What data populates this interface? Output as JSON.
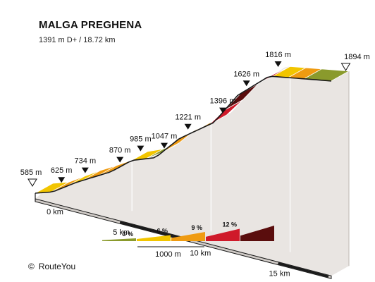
{
  "header": {
    "title": "MALGA PREGHENA",
    "subtitle": "1391 m D+ / 18.72 km"
  },
  "footer": {
    "copyright_symbol": "©",
    "copyright_text": "RouteYou"
  },
  "colors": {
    "background": "#ffffff",
    "wall": "#e9e5e2",
    "outline": "#1a1a1a",
    "grad_3": "#8a9a2c",
    "grad_6": "#f2c500",
    "grad_6b": "#f5d21a",
    "grad_9": "#ef9b12",
    "grad_12": "#cf1a2a",
    "grad_15": "#5a0d0d"
  },
  "chart_data": {
    "type": "area",
    "title": "MALGA PREGHENA",
    "subtitle": "1391 m D+ / 18.72 km",
    "total_distance_km": 18.72,
    "total_ascent_m": 1391,
    "xlim": [
      0,
      18.72
    ],
    "ylim": [
      585,
      1894
    ],
    "x_ticks": [
      {
        "km": 0,
        "label": "0 km"
      },
      {
        "km": 5,
        "label": "5 km"
      },
      {
        "km": 10,
        "label": "10 km"
      },
      {
        "km": 15,
        "label": "15 km"
      }
    ],
    "altitude_markers": [
      {
        "km": 0,
        "alt": 585,
        "label": "585 m",
        "kind": "start"
      },
      {
        "km": 1.1,
        "alt": 625,
        "label": "625 m",
        "kind": "point"
      },
      {
        "km": 2.6,
        "alt": 734,
        "label": "734 m",
        "kind": "point"
      },
      {
        "km": 4.8,
        "alt": 870,
        "label": "870 m",
        "kind": "point"
      },
      {
        "km": 6.1,
        "alt": 985,
        "label": "985 m",
        "kind": "point"
      },
      {
        "km": 7.6,
        "alt": 1047,
        "label": "1047 m",
        "kind": "point"
      },
      {
        "km": 9.1,
        "alt": 1221,
        "label": "1221 m",
        "kind": "point"
      },
      {
        "km": 11.3,
        "alt": 1396,
        "label": "1396 m",
        "kind": "point"
      },
      {
        "km": 12.8,
        "alt": 1626,
        "label": "1626 m",
        "kind": "point"
      },
      {
        "km": 14.8,
        "alt": 1816,
        "label": "1816 m",
        "kind": "point"
      },
      {
        "km": 18.72,
        "alt": 1894,
        "label": "1894 m",
        "kind": "end"
      }
    ],
    "segments": [
      {
        "from_km": 0,
        "to_km": 1,
        "gradient_class": "6"
      },
      {
        "from_km": 1,
        "to_km": 2,
        "gradient_class": "9"
      },
      {
        "from_km": 2,
        "to_km": 3,
        "gradient_class": "6"
      },
      {
        "from_km": 3,
        "to_km": 4,
        "gradient_class": "9"
      },
      {
        "from_km": 4,
        "to_km": 5,
        "gradient_class": "9"
      },
      {
        "from_km": 5,
        "to_km": 6,
        "gradient_class": "6"
      },
      {
        "from_km": 6,
        "to_km": 7,
        "gradient_class": "6"
      },
      {
        "from_km": 7,
        "to_km": 8,
        "gradient_class": "3"
      },
      {
        "from_km": 8,
        "to_km": 9,
        "gradient_class": "9"
      },
      {
        "from_km": 9,
        "to_km": 10,
        "gradient_class": "9"
      },
      {
        "from_km": 10,
        "to_km": 11,
        "gradient_class": "9"
      },
      {
        "from_km": 11,
        "to_km": 12,
        "gradient_class": "12"
      },
      {
        "from_km": 12,
        "to_km": 13,
        "gradient_class": "15"
      },
      {
        "from_km": 13,
        "to_km": 14,
        "gradient_class": "12"
      },
      {
        "from_km": 14,
        "to_km": 15,
        "gradient_class": "12"
      },
      {
        "from_km": 15,
        "to_km": 16,
        "gradient_class": "6"
      },
      {
        "from_km": 16,
        "to_km": 17,
        "gradient_class": "9"
      },
      {
        "from_km": 17,
        "to_km": 18.72,
        "gradient_class": "3"
      }
    ],
    "legend": {
      "items": [
        {
          "label": "3 %",
          "color": "#8a9a2c"
        },
        {
          "label": "6 %",
          "color": "#f2c500"
        },
        {
          "label": "9 %",
          "color": "#ef9b12"
        },
        {
          "label": "12 %",
          "color": "#cf1a2a"
        },
        {
          "label": "",
          "color": "#5a0d0d"
        }
      ],
      "scale_label": "1000 m"
    }
  }
}
